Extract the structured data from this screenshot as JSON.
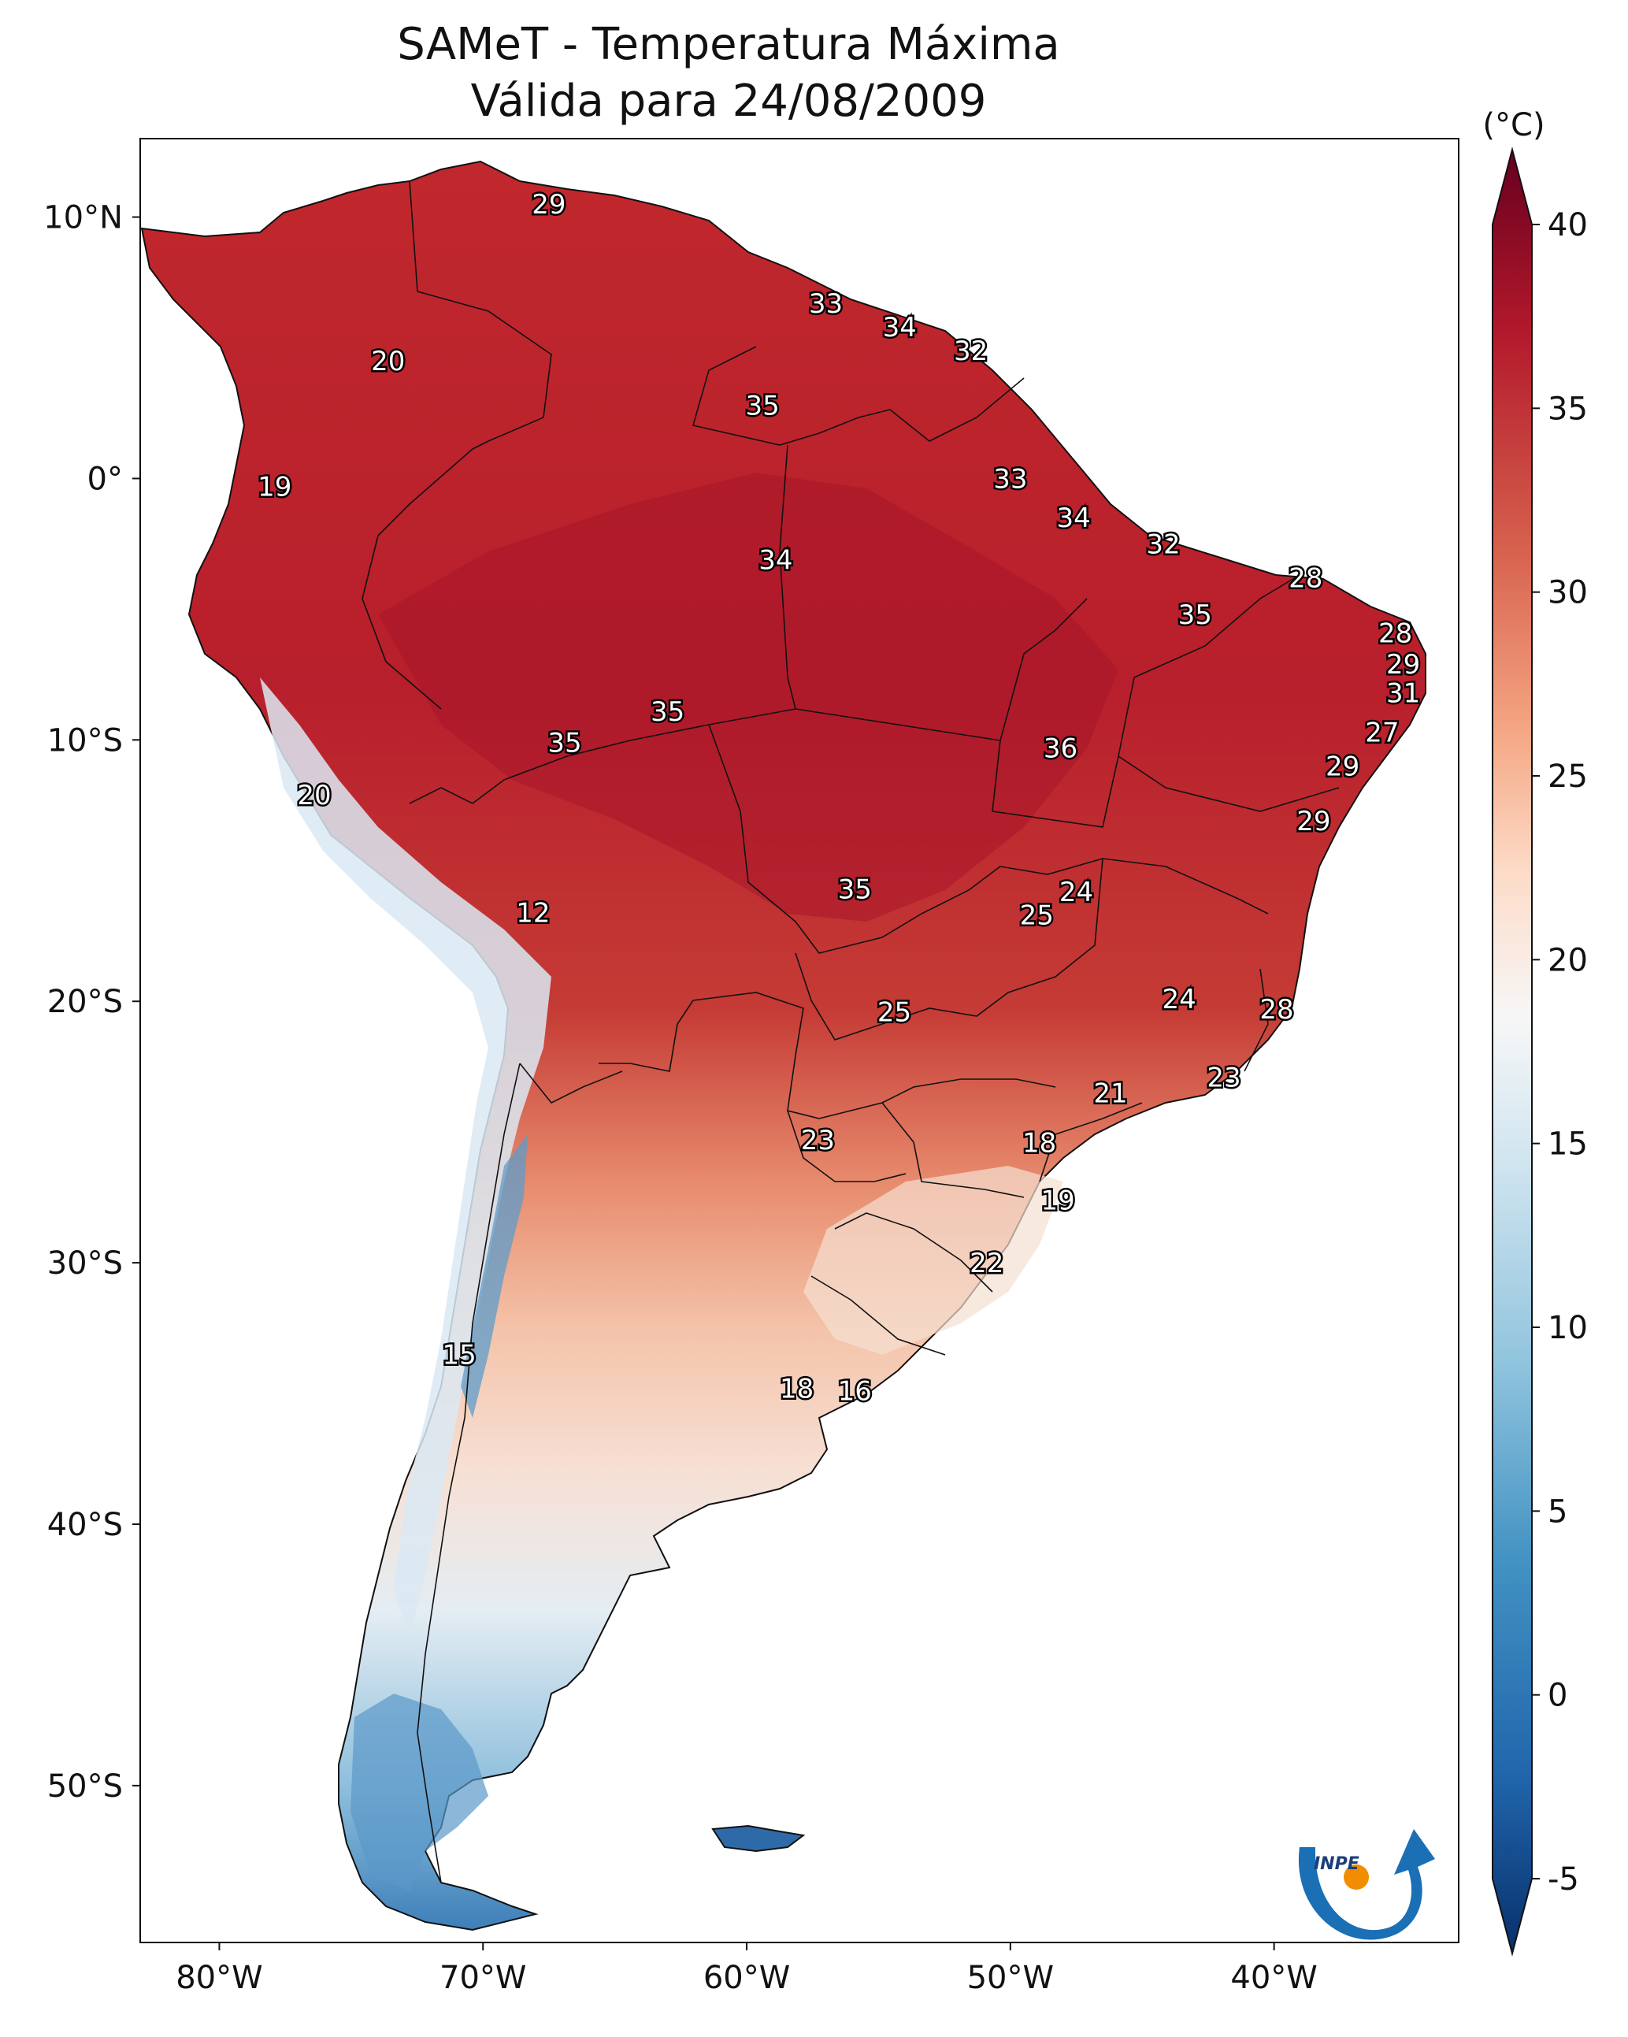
{
  "title": {
    "line1": "SAMeT - Temperatura Máxima",
    "line2": "Válida para 24/08/2009"
  },
  "map": {
    "lon_ticks": [
      "80°W",
      "70°W",
      "60°W",
      "50°W",
      "40°W"
    ],
    "lat_ticks": [
      "10°N",
      "0°",
      "10°S",
      "20°S",
      "30°S",
      "40°S",
      "50°S"
    ],
    "extent": {
      "lon_min": -83,
      "lon_max": -33,
      "lat_min": -56,
      "lat_max": 13
    }
  },
  "colorbar": {
    "unit": "(°C)",
    "min": -5,
    "max": 40,
    "extend": "both",
    "ticks": [
      "40",
      "35",
      "30",
      "25",
      "20",
      "15",
      "10",
      "5",
      "0",
      "-5"
    ],
    "colors": [
      "#08306b",
      "#2166ac",
      "#4393c3",
      "#92c5de",
      "#d1e5f0",
      "#f7f7f7",
      "#fddbc7",
      "#f4a582",
      "#d6604d",
      "#b2182b",
      "#67001f"
    ]
  },
  "labels": [
    {
      "t": "29",
      "lon": -67.5,
      "lat": 10.5
    },
    {
      "t": "33",
      "lon": -57.0,
      "lat": 6.7
    },
    {
      "t": "34",
      "lon": -54.2,
      "lat": 5.8
    },
    {
      "t": "32",
      "lon": -51.5,
      "lat": 4.9
    },
    {
      "t": "20",
      "lon": -73.6,
      "lat": 4.5
    },
    {
      "t": "35",
      "lon": -59.4,
      "lat": 2.8
    },
    {
      "t": "19",
      "lon": -77.9,
      "lat": -0.3
    },
    {
      "t": "33",
      "lon": -50.0,
      "lat": 0.0
    },
    {
      "t": "34",
      "lon": -47.6,
      "lat": -1.5
    },
    {
      "t": "32",
      "lon": -44.2,
      "lat": -2.5
    },
    {
      "t": "34",
      "lon": -58.9,
      "lat": -3.1
    },
    {
      "t": "28",
      "lon": -38.8,
      "lat": -3.8
    },
    {
      "t": "35",
      "lon": -43.0,
      "lat": -5.2
    },
    {
      "t": "28",
      "lon": -35.4,
      "lat": -5.9
    },
    {
      "t": "29",
      "lon": -35.1,
      "lat": -7.1
    },
    {
      "t": "31",
      "lon": -35.1,
      "lat": -8.2
    },
    {
      "t": "35",
      "lon": -63.0,
      "lat": -8.9
    },
    {
      "t": "27",
      "lon": -35.9,
      "lat": -9.7
    },
    {
      "t": "35",
      "lon": -66.9,
      "lat": -10.1
    },
    {
      "t": "36",
      "lon": -48.1,
      "lat": -10.3
    },
    {
      "t": "29",
      "lon": -37.4,
      "lat": -11.0
    },
    {
      "t": "20",
      "lon": -76.4,
      "lat": -12.1
    },
    {
      "t": "29",
      "lon": -38.5,
      "lat": -13.1
    },
    {
      "t": "35",
      "lon": -55.9,
      "lat": -15.7
    },
    {
      "t": "24",
      "lon": -47.5,
      "lat": -15.8
    },
    {
      "t": "25",
      "lon": -49.0,
      "lat": -16.7
    },
    {
      "t": "12",
      "lon": -68.1,
      "lat": -16.6
    },
    {
      "t": "24",
      "lon": -43.6,
      "lat": -19.9
    },
    {
      "t": "28",
      "lon": -39.9,
      "lat": -20.3
    },
    {
      "t": "25",
      "lon": -54.4,
      "lat": -20.4
    },
    {
      "t": "23",
      "lon": -41.9,
      "lat": -22.9
    },
    {
      "t": "21",
      "lon": -46.2,
      "lat": -23.5
    },
    {
      "t": "23",
      "lon": -57.3,
      "lat": -25.3
    },
    {
      "t": "18",
      "lon": -48.9,
      "lat": -25.4
    },
    {
      "t": "19",
      "lon": -48.2,
      "lat": -27.6
    },
    {
      "t": "22",
      "lon": -50.9,
      "lat": -30.0
    },
    {
      "t": "15",
      "lon": -70.9,
      "lat": -33.5
    },
    {
      "t": "18",
      "lon": -58.1,
      "lat": -34.8
    },
    {
      "t": "16",
      "lon": -55.9,
      "lat": -34.9
    }
  ],
  "logo": {
    "text": "INPE"
  }
}
